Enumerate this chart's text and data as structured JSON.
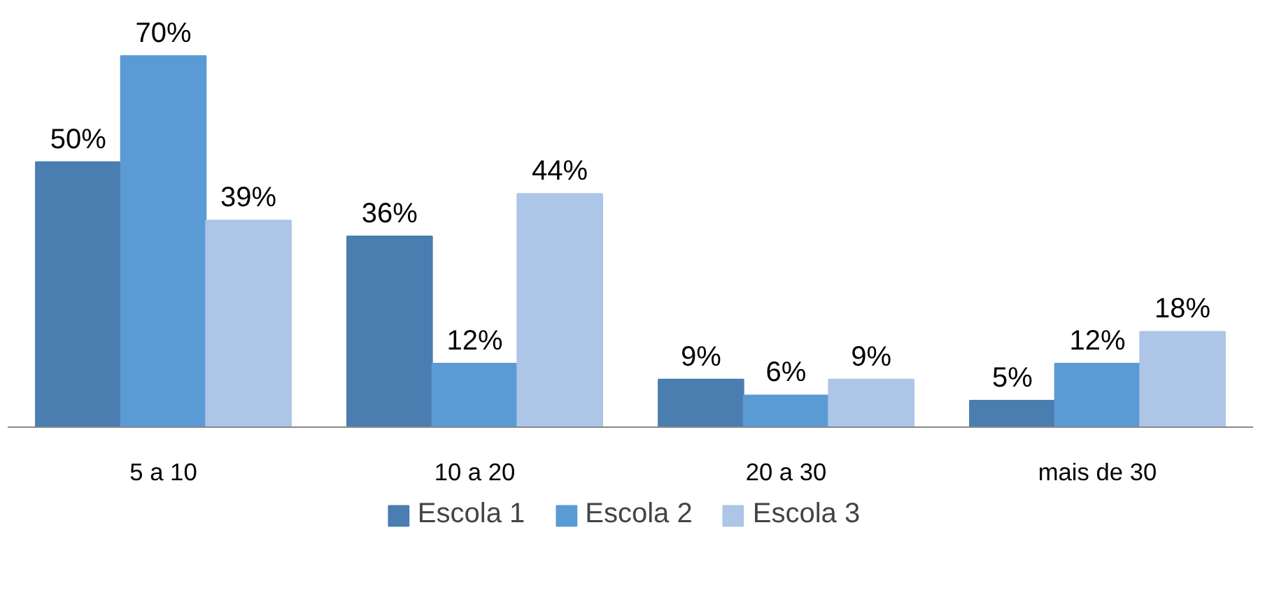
{
  "chart_data": {
    "type": "bar",
    "categories": [
      "5 a 10",
      "10 a 20",
      "20 a 30",
      "mais de 30"
    ],
    "series": [
      {
        "name": "Escola 1",
        "color": "#4a7eb0",
        "values": [
          50,
          36,
          9,
          5
        ],
        "value_labels": [
          "50%",
          "36%",
          "9%",
          "5%"
        ]
      },
      {
        "name": "Escola 2",
        "color": "#5b9bd5",
        "values": [
          70,
          12,
          6,
          12
        ],
        "value_labels": [
          "70%",
          "12%",
          "6%",
          "12%"
        ]
      },
      {
        "name": "Escola 3",
        "color": "#adc5e6",
        "values": [
          39,
          44,
          9,
          18
        ],
        "value_labels": [
          "39%",
          "44%",
          "9%",
          "18%"
        ]
      }
    ],
    "legend": "bottom"
  }
}
